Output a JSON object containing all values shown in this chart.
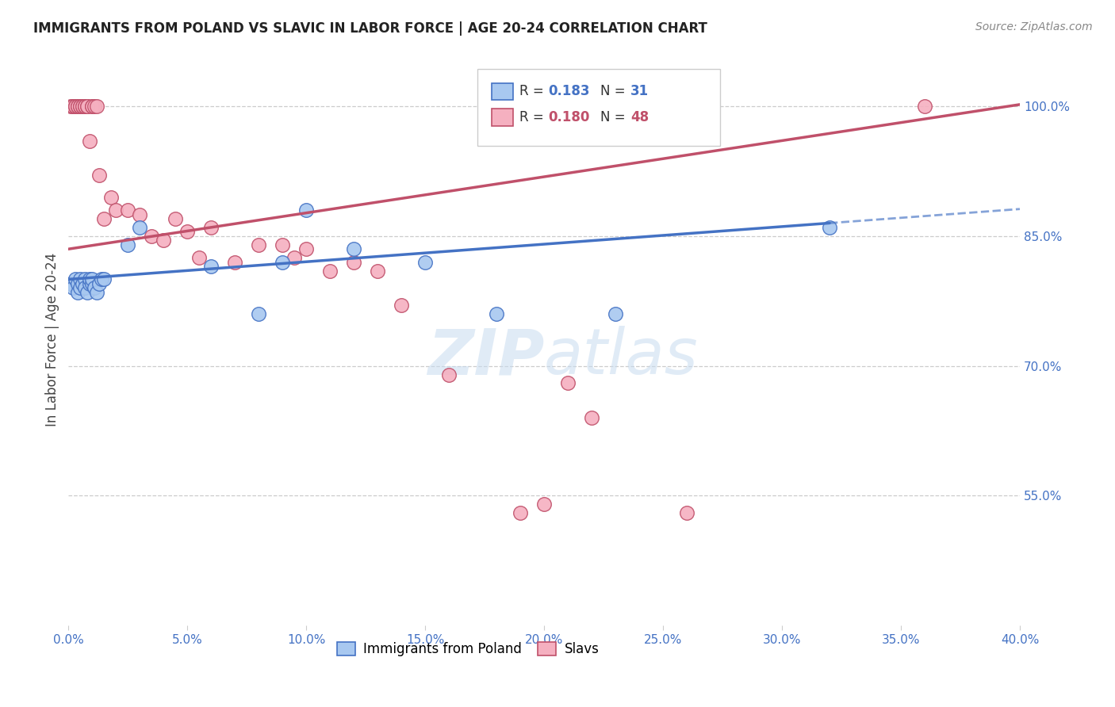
{
  "title": "IMMIGRANTS FROM POLAND VS SLAVIC IN LABOR FORCE | AGE 20-24 CORRELATION CHART",
  "source": "Source: ZipAtlas.com",
  "ylabel_label": "In Labor Force | Age 20-24",
  "xlim": [
    0.0,
    0.4
  ],
  "ylim": [
    0.4,
    1.06
  ],
  "xticks": [
    0.0,
    0.05,
    0.1,
    0.15,
    0.2,
    0.25,
    0.3,
    0.35,
    0.4
  ],
  "yticks": [
    0.55,
    0.7,
    0.85,
    1.0
  ],
  "poland_R": 0.183,
  "poland_N": 31,
  "slavs_R": 0.18,
  "slavs_N": 48,
  "poland_color": "#A8C8F0",
  "slavs_color": "#F5B0C0",
  "poland_line_color": "#4472C4",
  "slavs_line_color": "#C0506A",
  "background_color": "#FFFFFF",
  "poland_line_x0": 0.0,
  "poland_line_y0": 0.8,
  "poland_line_x1": 0.32,
  "poland_line_y1": 0.865,
  "slavs_line_x0": 0.0,
  "slavs_line_y0": 0.835,
  "slavs_line_x1": 0.4,
  "slavs_line_y1": 1.002,
  "poland_x": [
    0.001,
    0.002,
    0.003,
    0.004,
    0.004,
    0.005,
    0.005,
    0.006,
    0.007,
    0.007,
    0.008,
    0.009,
    0.009,
    0.01,
    0.01,
    0.011,
    0.012,
    0.013,
    0.014,
    0.015,
    0.025,
    0.03,
    0.06,
    0.08,
    0.09,
    0.1,
    0.12,
    0.15,
    0.18,
    0.23,
    0.32
  ],
  "poland_y": [
    0.795,
    0.79,
    0.8,
    0.795,
    0.785,
    0.8,
    0.79,
    0.795,
    0.8,
    0.79,
    0.785,
    0.795,
    0.8,
    0.795,
    0.8,
    0.79,
    0.785,
    0.795,
    0.8,
    0.8,
    0.84,
    0.86,
    0.815,
    0.76,
    0.82,
    0.88,
    0.835,
    0.82,
    0.76,
    0.76,
    0.86
  ],
  "slavs_x": [
    0.001,
    0.002,
    0.002,
    0.003,
    0.003,
    0.004,
    0.004,
    0.005,
    0.005,
    0.006,
    0.006,
    0.007,
    0.007,
    0.008,
    0.008,
    0.009,
    0.01,
    0.01,
    0.011,
    0.012,
    0.013,
    0.015,
    0.018,
    0.02,
    0.025,
    0.03,
    0.035,
    0.04,
    0.045,
    0.05,
    0.055,
    0.06,
    0.07,
    0.08,
    0.09,
    0.095,
    0.1,
    0.11,
    0.12,
    0.13,
    0.14,
    0.16,
    0.19,
    0.2,
    0.21,
    0.22,
    0.26,
    0.36
  ],
  "slavs_y": [
    1.0,
    1.0,
    1.0,
    1.0,
    1.0,
    1.0,
    1.0,
    1.0,
    1.0,
    1.0,
    1.0,
    1.0,
    1.0,
    1.0,
    1.0,
    0.96,
    1.0,
    1.0,
    1.0,
    1.0,
    0.92,
    0.87,
    0.895,
    0.88,
    0.88,
    0.875,
    0.85,
    0.845,
    0.87,
    0.855,
    0.825,
    0.86,
    0.82,
    0.84,
    0.84,
    0.825,
    0.835,
    0.81,
    0.82,
    0.81,
    0.77,
    0.69,
    0.53,
    0.54,
    0.68,
    0.64,
    0.53,
    1.0
  ]
}
